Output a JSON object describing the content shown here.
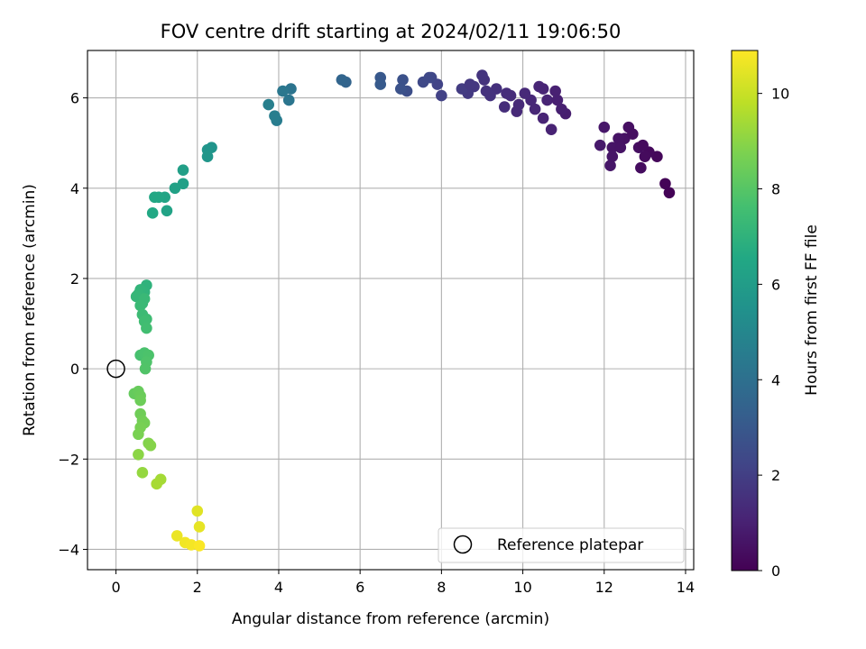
{
  "chart_data": {
    "type": "scatter",
    "title": "FOV centre drift starting at 2024/02/11 19:06:50",
    "xlabel": "Angular distance from reference (arcmin)",
    "ylabel": "Rotation from reference (arcmin)",
    "xlim": [
      -0.7,
      14.2
    ],
    "ylim": [
      -4.45,
      7.05
    ],
    "xticks": [
      0,
      2,
      4,
      6,
      8,
      10,
      12,
      14
    ],
    "yticks": [
      -4,
      -2,
      0,
      2,
      4,
      6
    ],
    "xtick_labels": [
      "0",
      "2",
      "4",
      "6",
      "8",
      "10",
      "12",
      "14"
    ],
    "ytick_labels": [
      "−4",
      "−2",
      "0",
      "2",
      "4",
      "6"
    ],
    "grid": true,
    "colormap": "viridis",
    "colorbar": {
      "label": "Hours from first FF file",
      "range": [
        0,
        10.9
      ],
      "ticks": [
        0,
        2,
        4,
        6,
        8,
        10
      ],
      "tick_labels": [
        "0",
        "2",
        "4",
        "6",
        "8",
        "10"
      ]
    },
    "legend": {
      "position": "lower-right",
      "entries": [
        "Reference platepar"
      ]
    },
    "reference_point": {
      "x": 0,
      "y": 0
    },
    "points": [
      {
        "x": 13.6,
        "y": 3.9,
        "h": 0.05
      },
      {
        "x": 13.5,
        "y": 4.1,
        "h": 0.1
      },
      {
        "x": 13.3,
        "y": 4.7,
        "h": 0.2
      },
      {
        "x": 13.1,
        "y": 4.8,
        "h": 0.25
      },
      {
        "x": 13.0,
        "y": 4.7,
        "h": 0.3
      },
      {
        "x": 12.9,
        "y": 4.45,
        "h": 0.35
      },
      {
        "x": 12.85,
        "y": 4.9,
        "h": 0.4
      },
      {
        "x": 12.6,
        "y": 5.35,
        "h": 0.45
      },
      {
        "x": 12.5,
        "y": 5.1,
        "h": 0.5
      },
      {
        "x": 12.35,
        "y": 5.1,
        "h": 0.55
      },
      {
        "x": 12.2,
        "y": 4.9,
        "h": 0.6
      },
      {
        "x": 12.15,
        "y": 4.5,
        "h": 0.65
      },
      {
        "x": 12.0,
        "y": 5.35,
        "h": 0.7
      },
      {
        "x": 11.9,
        "y": 4.95,
        "h": 0.75
      },
      {
        "x": 12.4,
        "y": 4.9,
        "h": 0.55
      },
      {
        "x": 12.7,
        "y": 5.2,
        "h": 0.4
      },
      {
        "x": 12.95,
        "y": 4.95,
        "h": 0.3
      },
      {
        "x": 12.2,
        "y": 4.7,
        "h": 0.62
      },
      {
        "x": 11.05,
        "y": 5.65,
        "h": 0.9
      },
      {
        "x": 10.95,
        "y": 5.75,
        "h": 0.95
      },
      {
        "x": 10.8,
        "y": 6.15,
        "h": 1.0
      },
      {
        "x": 10.7,
        "y": 5.3,
        "h": 1.05
      },
      {
        "x": 10.5,
        "y": 5.55,
        "h": 1.1
      },
      {
        "x": 10.4,
        "y": 6.25,
        "h": 1.15
      },
      {
        "x": 10.2,
        "y": 5.95,
        "h": 1.2
      },
      {
        "x": 10.05,
        "y": 6.1,
        "h": 1.25
      },
      {
        "x": 9.9,
        "y": 5.85,
        "h": 1.3
      },
      {
        "x": 9.7,
        "y": 6.05,
        "h": 1.35
      },
      {
        "x": 9.55,
        "y": 5.8,
        "h": 1.4
      },
      {
        "x": 9.35,
        "y": 6.2,
        "h": 1.5
      },
      {
        "x": 9.2,
        "y": 6.05,
        "h": 1.55
      },
      {
        "x": 9.05,
        "y": 6.4,
        "h": 1.6
      },
      {
        "x": 9.0,
        "y": 6.5,
        "h": 1.65
      },
      {
        "x": 8.8,
        "y": 6.25,
        "h": 1.75
      },
      {
        "x": 8.65,
        "y": 6.1,
        "h": 1.8
      },
      {
        "x": 8.5,
        "y": 6.2,
        "h": 1.9
      },
      {
        "x": 10.6,
        "y": 5.95,
        "h": 1.1
      },
      {
        "x": 10.3,
        "y": 5.75,
        "h": 1.18
      },
      {
        "x": 9.85,
        "y": 5.7,
        "h": 1.3
      },
      {
        "x": 9.6,
        "y": 6.1,
        "h": 1.4
      },
      {
        "x": 9.1,
        "y": 6.15,
        "h": 1.58
      },
      {
        "x": 10.5,
        "y": 6.2,
        "h": 1.12
      },
      {
        "x": 10.85,
        "y": 5.95,
        "h": 0.98
      },
      {
        "x": 8.7,
        "y": 6.3,
        "h": 1.78
      },
      {
        "x": 8.0,
        "y": 6.05,
        "h": 2.1
      },
      {
        "x": 7.9,
        "y": 6.3,
        "h": 2.2
      },
      {
        "x": 7.75,
        "y": 6.45,
        "h": 2.3
      },
      {
        "x": 7.7,
        "y": 6.45,
        "h": 2.35
      },
      {
        "x": 7.55,
        "y": 6.35,
        "h": 2.4
      },
      {
        "x": 7.15,
        "y": 6.15,
        "h": 2.6
      },
      {
        "x": 7.05,
        "y": 6.4,
        "h": 2.7
      },
      {
        "x": 7.0,
        "y": 6.2,
        "h": 2.75
      },
      {
        "x": 6.5,
        "y": 6.45,
        "h": 3.0
      },
      {
        "x": 6.5,
        "y": 6.3,
        "h": 3.05
      },
      {
        "x": 5.65,
        "y": 6.35,
        "h": 3.5
      },
      {
        "x": 5.55,
        "y": 6.4,
        "h": 3.55
      },
      {
        "x": 4.3,
        "y": 6.2,
        "h": 4.2
      },
      {
        "x": 4.25,
        "y": 5.95,
        "h": 4.25
      },
      {
        "x": 4.1,
        "y": 6.15,
        "h": 4.3
      },
      {
        "x": 3.95,
        "y": 5.5,
        "h": 4.55
      },
      {
        "x": 3.9,
        "y": 5.6,
        "h": 4.6
      },
      {
        "x": 3.75,
        "y": 5.85,
        "h": 4.65
      },
      {
        "x": 2.35,
        "y": 4.9,
        "h": 5.6
      },
      {
        "x": 2.25,
        "y": 4.85,
        "h": 5.65
      },
      {
        "x": 2.25,
        "y": 4.7,
        "h": 5.7
      },
      {
        "x": 1.65,
        "y": 4.4,
        "h": 6.1
      },
      {
        "x": 1.65,
        "y": 4.1,
        "h": 6.15
      },
      {
        "x": 1.45,
        "y": 4.0,
        "h": 6.2
      },
      {
        "x": 1.25,
        "y": 3.5,
        "h": 6.3
      },
      {
        "x": 1.2,
        "y": 3.8,
        "h": 6.35
      },
      {
        "x": 1.05,
        "y": 3.8,
        "h": 6.45
      },
      {
        "x": 0.95,
        "y": 3.8,
        "h": 6.5
      },
      {
        "x": 0.9,
        "y": 3.45,
        "h": 6.55
      },
      {
        "x": 0.75,
        "y": 1.85,
        "h": 7.0
      },
      {
        "x": 0.7,
        "y": 1.7,
        "h": 7.05
      },
      {
        "x": 0.6,
        "y": 1.75,
        "h": 7.1
      },
      {
        "x": 0.55,
        "y": 1.65,
        "h": 7.15
      },
      {
        "x": 0.5,
        "y": 1.6,
        "h": 7.2
      },
      {
        "x": 0.65,
        "y": 1.45,
        "h": 7.25
      },
      {
        "x": 0.7,
        "y": 1.55,
        "h": 7.3
      },
      {
        "x": 0.6,
        "y": 1.4,
        "h": 7.35
      },
      {
        "x": 0.65,
        "y": 1.2,
        "h": 7.4
      },
      {
        "x": 0.75,
        "y": 1.1,
        "h": 7.45
      },
      {
        "x": 0.7,
        "y": 1.05,
        "h": 7.5
      },
      {
        "x": 0.75,
        "y": 0.9,
        "h": 7.55
      },
      {
        "x": 0.6,
        "y": 0.3,
        "h": 7.7
      },
      {
        "x": 0.7,
        "y": 0.35,
        "h": 7.75
      },
      {
        "x": 0.8,
        "y": 0.3,
        "h": 7.8
      },
      {
        "x": 0.75,
        "y": 0.15,
        "h": 7.85
      },
      {
        "x": 0.72,
        "y": 0.0,
        "h": 7.9
      },
      {
        "x": 0.45,
        "y": -0.55,
        "h": 8.3
      },
      {
        "x": 0.55,
        "y": -0.5,
        "h": 8.35
      },
      {
        "x": 0.6,
        "y": -0.6,
        "h": 8.4
      },
      {
        "x": 0.6,
        "y": -0.7,
        "h": 8.45
      },
      {
        "x": 0.6,
        "y": -1.0,
        "h": 8.5
      },
      {
        "x": 0.65,
        "y": -1.15,
        "h": 8.55
      },
      {
        "x": 0.7,
        "y": -1.2,
        "h": 8.6
      },
      {
        "x": 0.6,
        "y": -1.3,
        "h": 8.65
      },
      {
        "x": 0.55,
        "y": -1.45,
        "h": 8.7
      },
      {
        "x": 0.8,
        "y": -1.65,
        "h": 8.85
      },
      {
        "x": 0.85,
        "y": -1.7,
        "h": 8.9
      },
      {
        "x": 0.55,
        "y": -1.9,
        "h": 9.0
      },
      {
        "x": 0.65,
        "y": -2.3,
        "h": 9.15
      },
      {
        "x": 1.1,
        "y": -2.45,
        "h": 9.4
      },
      {
        "x": 1.0,
        "y": -2.55,
        "h": 9.45
      },
      {
        "x": 2.0,
        "y": -3.15,
        "h": 10.4
      },
      {
        "x": 2.05,
        "y": -3.5,
        "h": 10.5
      },
      {
        "x": 1.5,
        "y": -3.7,
        "h": 10.6
      },
      {
        "x": 1.7,
        "y": -3.85,
        "h": 10.7
      },
      {
        "x": 1.85,
        "y": -3.9,
        "h": 10.75
      },
      {
        "x": 2.05,
        "y": -3.92,
        "h": 10.85
      }
    ]
  }
}
